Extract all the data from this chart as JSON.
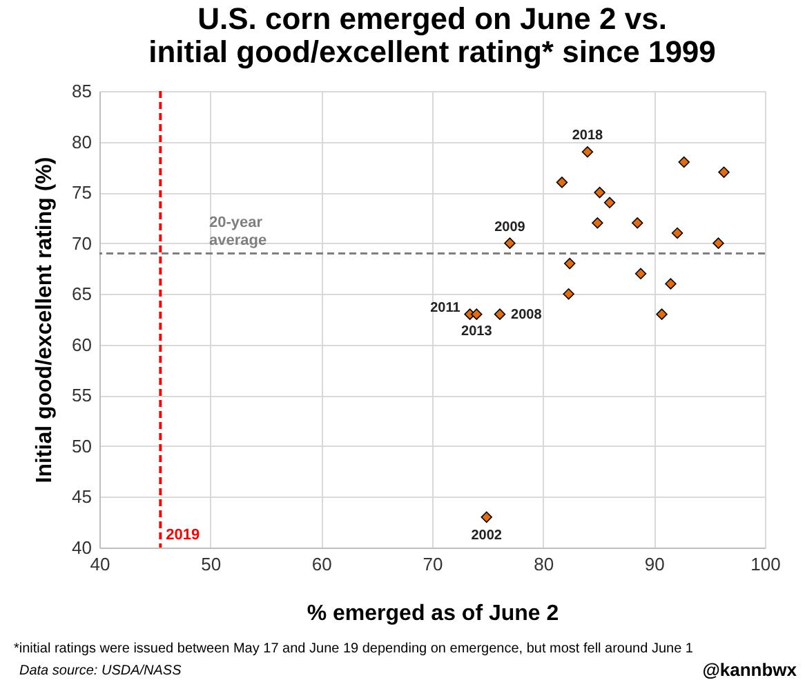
{
  "chart_data": {
    "type": "scatter",
    "title": "U.S. corn emerged on June 2 vs.\ninitial good/excellent rating* since 1999",
    "xlabel": "% emerged as of June 2",
    "ylabel": "Initial good/excellent rating (%)",
    "x": [
      84,
      92.7,
      96.3,
      81.7,
      85.1,
      86,
      84.9,
      88.5,
      92.1,
      95.8,
      77,
      82.4,
      88.8,
      91.5,
      82.3,
      90.7,
      73.4,
      74,
      76.1,
      74.9
    ],
    "series": [
      {
        "color": "#e46c0a",
        "values": [
          79,
          78,
          77,
          76,
          75,
          74,
          72,
          72,
          71,
          70,
          70,
          68,
          67,
          66,
          65,
          63,
          63,
          63,
          63,
          43
        ]
      }
    ],
    "marker": "diamond",
    "grid": true,
    "xlim": [
      40,
      100
    ],
    "xticks": [
      40,
      50,
      60,
      70,
      80,
      90,
      100
    ],
    "ylim": [
      40,
      85
    ],
    "yticks": [
      40,
      45,
      50,
      55,
      60,
      65,
      70,
      75,
      80,
      85
    ],
    "ref_lines": [
      {
        "axis": "y",
        "value": 69,
        "label": "20-year average",
        "color": "#7f7f7f",
        "line_style": "dashed"
      },
      {
        "axis": "x",
        "value": 45.5,
        "color": "#ff0000",
        "line_style": "dashed"
      }
    ],
    "annotations": [
      {
        "text": "2019",
        "x": 45.5,
        "y": 40
      },
      {
        "text": "2018",
        "x": 84,
        "y": 79
      },
      {
        "text": "2009",
        "x": 77,
        "y": 70
      },
      {
        "text": "2011",
        "x": 73.4,
        "y": 63
      },
      {
        "text": "2013",
        "x": 74,
        "y": 63
      },
      {
        "text": "2008",
        "x": 76.1,
        "y": 63
      },
      {
        "text": "2002",
        "x": 74.9,
        "y": 43
      },
      "*initial ratings were issued between May 17 and June 19 depending on emergence, but most fell around June 1",
      "Data source: USDA/NASS",
      "@kannbwx"
    ]
  }
}
